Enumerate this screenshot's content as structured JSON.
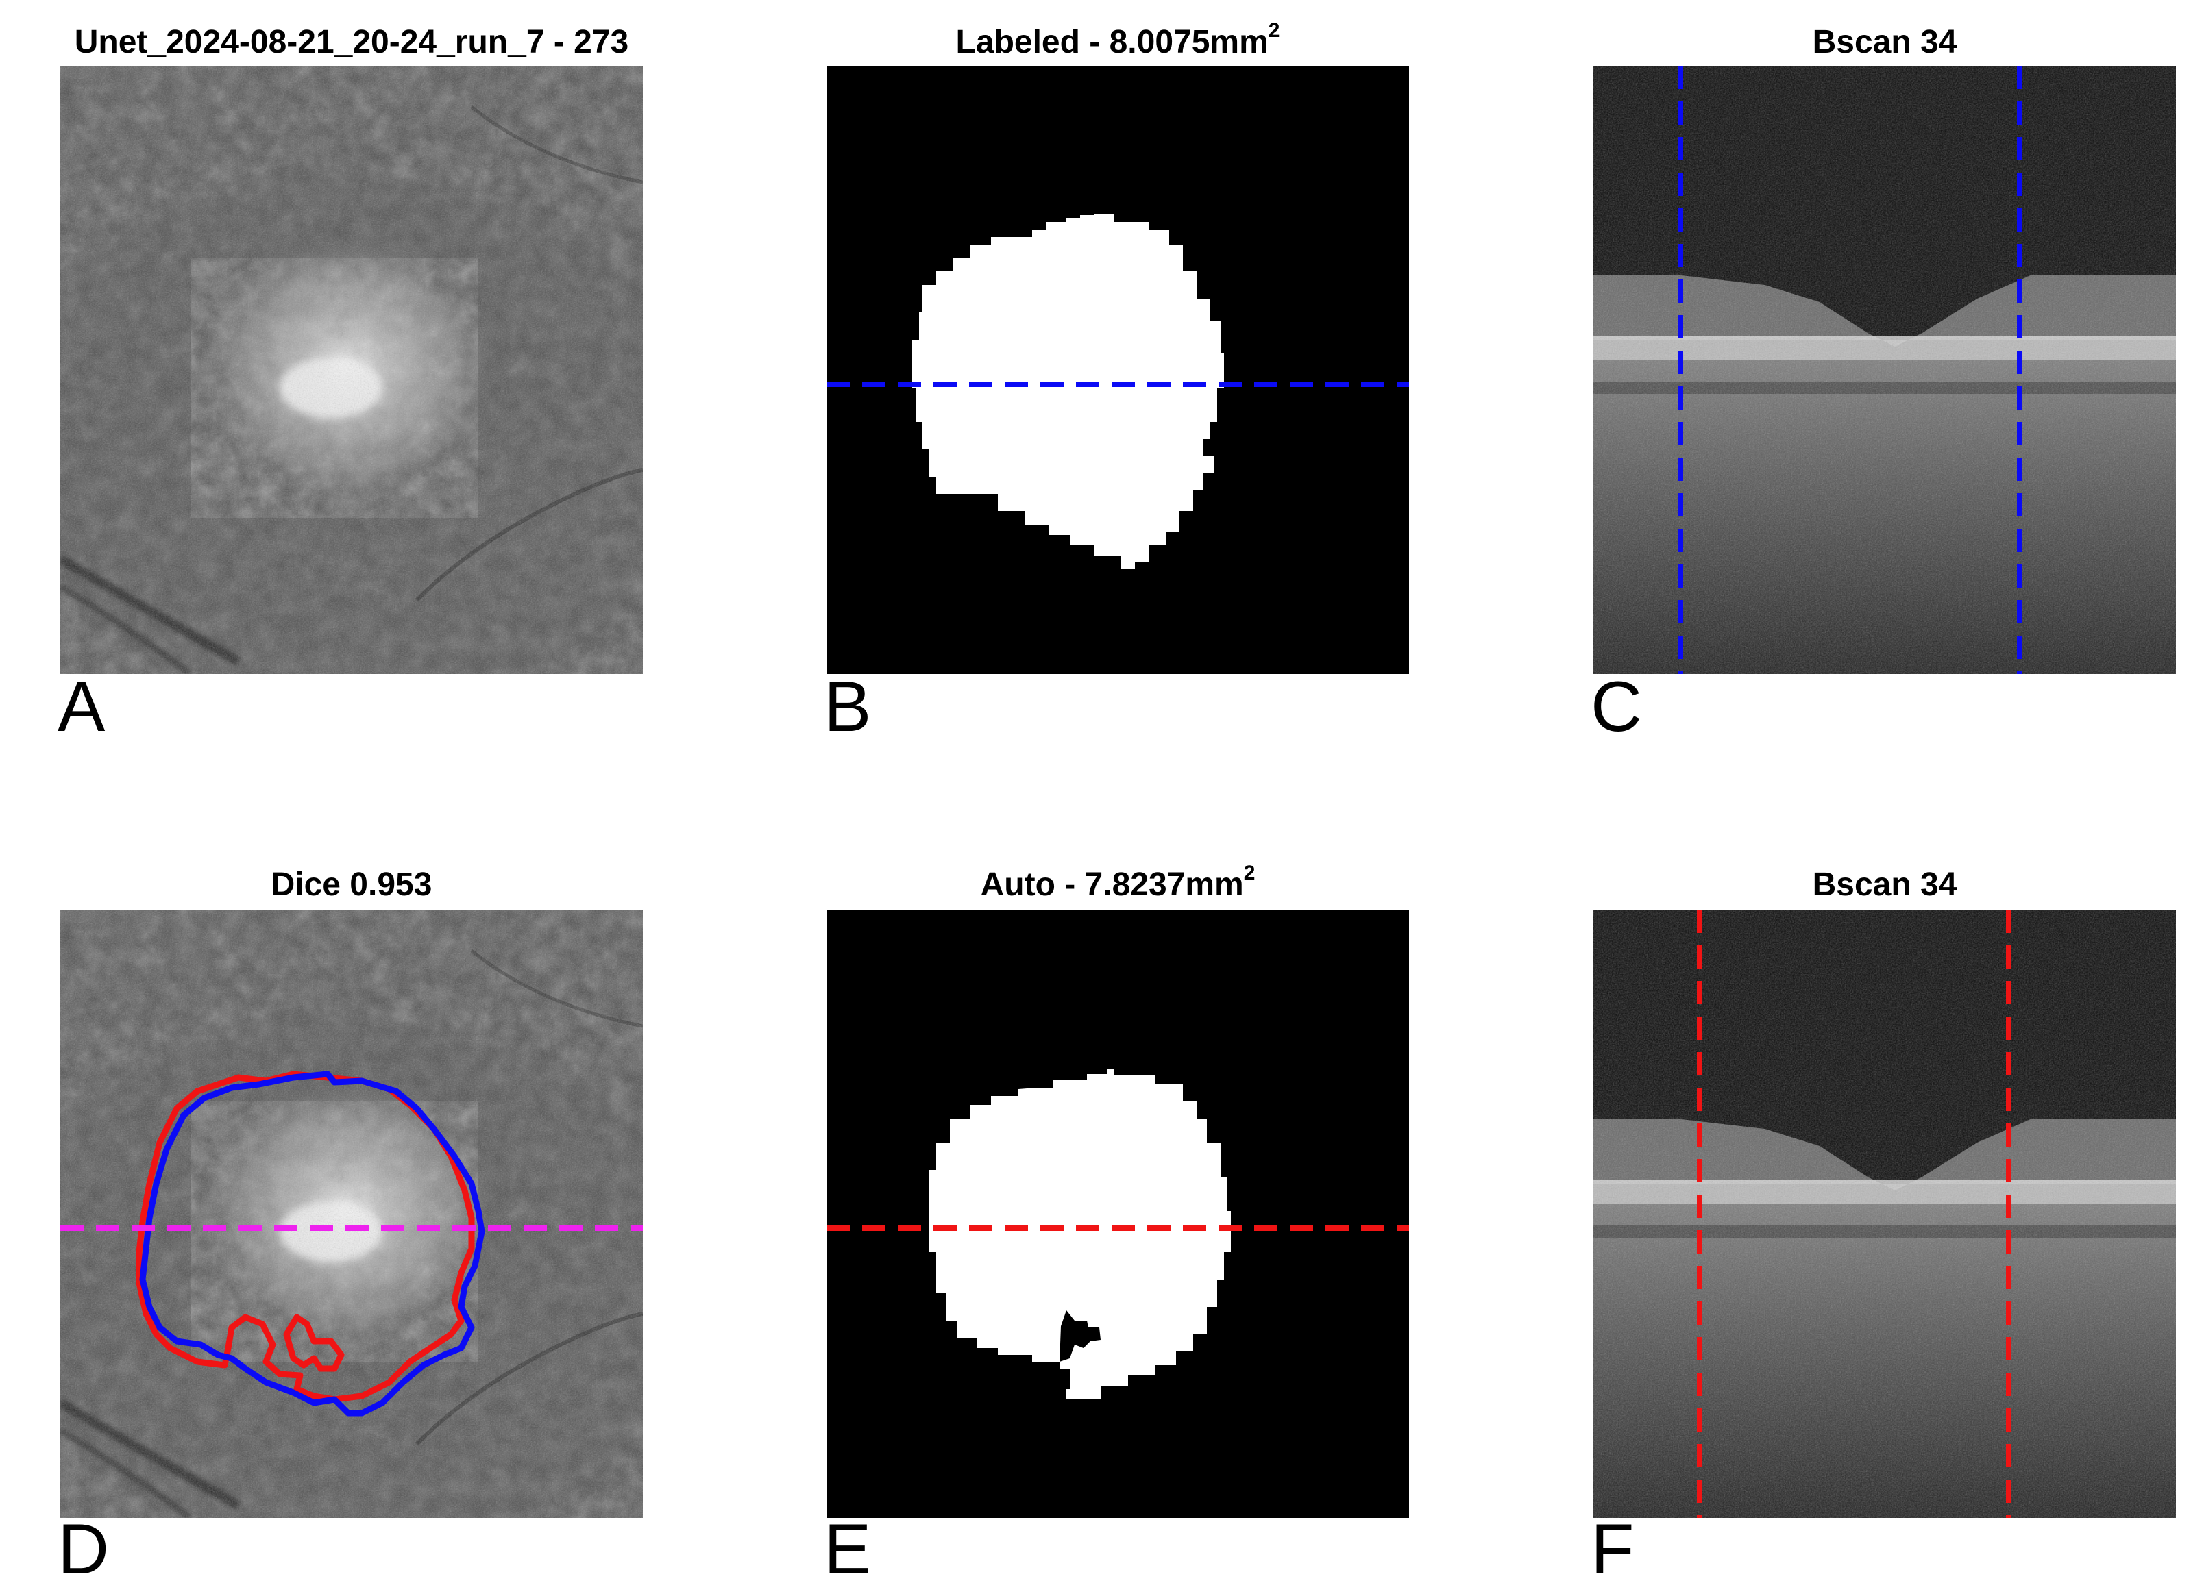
{
  "panels": [
    {
      "letter": "A",
      "title": "Unet_2024-08-21_20-24_run_7 - 273"
    },
    {
      "letter": "B",
      "title_prefix": "Labeled - 8.0075mm",
      "title_sup": "2"
    },
    {
      "letter": "C",
      "title": "Bscan 34"
    },
    {
      "letter": "D",
      "title": "Dice 0.953"
    },
    {
      "letter": "E",
      "title_prefix": "Auto - 7.8237mm",
      "title_sup": "2"
    },
    {
      "letter": "F",
      "title": "Bscan 34"
    }
  ],
  "colors": {
    "labeled_line": "#0b0bf5",
    "auto_line": "#f01414",
    "slice_marker": "#ee22ee",
    "mask_fg": "#ffffff",
    "mask_bg": "#000000"
  }
}
